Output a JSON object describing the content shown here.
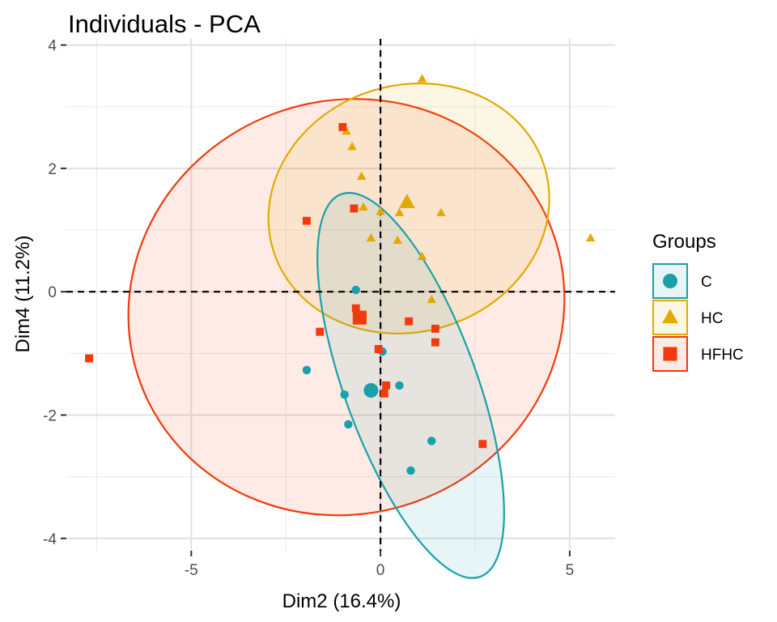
{
  "chart_data": {
    "type": "scatter",
    "title": "Individuals - PCA",
    "xlabel": "Dim2 (16.4%)",
    "ylabel": "Dim4 (11.2%)",
    "xlim": [
      -8.3,
      6.2
    ],
    "ylim": [
      -4.2,
      4.1
    ],
    "x_ticks": [
      -5,
      0,
      5
    ],
    "x_tick_labels": [
      "-5",
      "0",
      "5"
    ],
    "y_ticks": [
      -4,
      -2,
      0,
      2,
      4
    ],
    "y_tick_labels": [
      "-4",
      "-2",
      "0",
      "2",
      "4"
    ],
    "grid": true,
    "reference_lines": {
      "x": 0,
      "y": 0,
      "style": "dashed"
    },
    "legend": {
      "title": "Groups",
      "position": "right"
    },
    "series": [
      {
        "name": "C",
        "color": "#1AA0A8",
        "shape": "circle",
        "points": [
          {
            "x": -0.65,
            "y": 0.03
          },
          {
            "x": 0.05,
            "y": -0.97
          },
          {
            "x": -1.95,
            "y": -1.27
          },
          {
            "x": -0.95,
            "y": -1.67
          },
          {
            "x": 0.5,
            "y": -1.52
          },
          {
            "x": -0.85,
            "y": -2.15
          },
          {
            "x": 1.35,
            "y": -2.42
          },
          {
            "x": 0.8,
            "y": -2.9
          }
        ],
        "centroid": {
          "x": -0.25,
          "y": -1.6
        },
        "ellipse": {
          "cx": 0.8,
          "cy": -1.52,
          "rx": 1.75,
          "ry": 3.3,
          "rotation_deg": -20
        }
      },
      {
        "name": "HC",
        "color": "#E2AA00",
        "shape": "triangle",
        "points": [
          {
            "x": 1.1,
            "y": 3.45
          },
          {
            "x": -0.9,
            "y": 2.6
          },
          {
            "x": -0.75,
            "y": 2.35
          },
          {
            "x": -0.5,
            "y": 1.87
          },
          {
            "x": -0.45,
            "y": 1.37
          },
          {
            "x": 0.0,
            "y": 1.3
          },
          {
            "x": 0.5,
            "y": 1.28
          },
          {
            "x": 1.6,
            "y": 1.28
          },
          {
            "x": -0.25,
            "y": 0.87
          },
          {
            "x": 0.45,
            "y": 0.83
          },
          {
            "x": 1.1,
            "y": 0.57
          },
          {
            "x": 5.55,
            "y": 0.87
          },
          {
            "x": 1.35,
            "y": -0.13
          }
        ],
        "centroid": {
          "x": 0.7,
          "y": 1.45
        },
        "ellipse": {
          "cx": 0.75,
          "cy": 1.35,
          "rx": 3.75,
          "ry": 2.0,
          "rotation_deg": -17
        }
      },
      {
        "name": "HFHC",
        "color": "#F23A0C",
        "shape": "square",
        "points": [
          {
            "x": -1.0,
            "y": 2.67
          },
          {
            "x": -1.95,
            "y": 1.15
          },
          {
            "x": -0.7,
            "y": 1.35
          },
          {
            "x": -0.65,
            "y": -0.27
          },
          {
            "x": -1.6,
            "y": -0.65
          },
          {
            "x": 0.75,
            "y": -0.48
          },
          {
            "x": 1.45,
            "y": -0.6
          },
          {
            "x": 1.45,
            "y": -0.82
          },
          {
            "x": -0.05,
            "y": -0.93
          },
          {
            "x": 0.15,
            "y": -1.52
          },
          {
            "x": 0.1,
            "y": -1.65
          },
          {
            "x": 2.7,
            "y": -2.47
          },
          {
            "x": -7.7,
            "y": -1.08
          }
        ],
        "centroid": {
          "x": -0.55,
          "y": -0.42
        },
        "ellipse": {
          "cx": -0.9,
          "cy": -0.25,
          "rx": 5.8,
          "ry": 3.35,
          "rotation_deg": -20
        }
      }
    ]
  }
}
